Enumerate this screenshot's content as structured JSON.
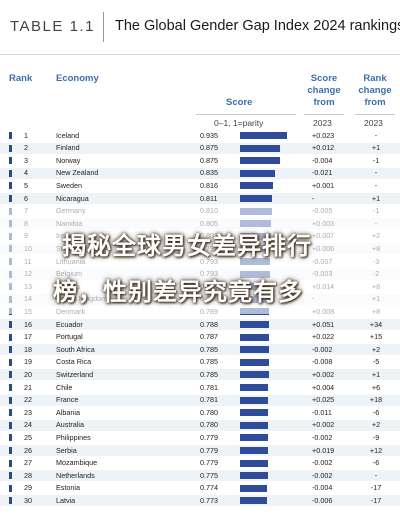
{
  "header": {
    "table_label": "TABLE 1.1",
    "title": "The Global Gender Gap Index 2024 rankings"
  },
  "columns": {
    "rank": "Rank",
    "economy": "Economy",
    "score": "Score",
    "score_change": "Score\nchange\nfrom",
    "rank_change": "Rank\nchange\nfrom",
    "parity": "0–1, 1=parity",
    "year1": "2023",
    "year2": "2023"
  },
  "rows": [
    {
      "rank": "1",
      "economy": "Iceland",
      "score": "0.935",
      "score_value": 0.935,
      "chg": "+0.023",
      "rchg": "-"
    },
    {
      "rank": "2",
      "economy": "Finland",
      "score": "0.875",
      "score_value": 0.875,
      "chg": "+0.012",
      "rchg": "+1"
    },
    {
      "rank": "3",
      "economy": "Norway",
      "score": "0.875",
      "score_value": 0.875,
      "chg": "-0.004",
      "rchg": "-1"
    },
    {
      "rank": "4",
      "economy": "New Zealand",
      "score": "0.835",
      "score_value": 0.835,
      "chg": "-0.021",
      "rchg": "-"
    },
    {
      "rank": "5",
      "economy": "Sweden",
      "score": "0.816",
      "score_value": 0.816,
      "chg": "+0.001",
      "rchg": "-"
    },
    {
      "rank": "6",
      "economy": "Nicaragua",
      "score": "0.811",
      "score_value": 0.811,
      "chg": "-",
      "rchg": "+1"
    },
    {
      "rank": "7",
      "economy": "Germany",
      "score": "0.810",
      "score_value": 0.81,
      "chg": "-0.005",
      "rchg": "-1"
    },
    {
      "rank": "8",
      "economy": "Namibia",
      "score": "0.805",
      "score_value": 0.805,
      "chg": "+0.003",
      "rchg": "-"
    },
    {
      "rank": "9",
      "economy": "Ireland",
      "score": "0.802",
      "score_value": 0.802,
      "chg": "+0.007",
      "rchg": "+2"
    },
    {
      "rank": "10",
      "economy": "Spain",
      "score": "0.797",
      "score_value": 0.797,
      "chg": "+0.006",
      "rchg": "+8"
    },
    {
      "rank": "11",
      "economy": "Lithuania",
      "score": "0.793",
      "score_value": 0.793,
      "chg": "-0.007",
      "rchg": "-3"
    },
    {
      "rank": "12",
      "economy": "Belgium",
      "score": "0.793",
      "score_value": 0.793,
      "chg": "-0.003",
      "rchg": "-2"
    },
    {
      "rank": "13",
      "economy": "Estonia",
      "score": "0.791",
      "score_value": 0.791,
      "chg": "+0.014",
      "rchg": "+8"
    },
    {
      "rank": "14",
      "economy": "United Kingdom",
      "score": "0.789",
      "score_value": 0.789,
      "chg": "-",
      "rchg": "+1"
    },
    {
      "rank": "15",
      "economy": "Denmark",
      "score": "0.789",
      "score_value": 0.789,
      "chg": "+0.008",
      "rchg": "+8"
    },
    {
      "rank": "16",
      "economy": "Ecuador",
      "score": "0.788",
      "score_value": 0.788,
      "chg": "+0.051",
      "rchg": "+34"
    },
    {
      "rank": "17",
      "economy": "Portugal",
      "score": "0.787",
      "score_value": 0.787,
      "chg": "+0.022",
      "rchg": "+15"
    },
    {
      "rank": "18",
      "economy": "South Africa",
      "score": "0.785",
      "score_value": 0.785,
      "chg": "-0.002",
      "rchg": "+2"
    },
    {
      "rank": "19",
      "economy": "Costa Rica",
      "score": "0.785",
      "score_value": 0.785,
      "chg": "-0.008",
      "rchg": "-5"
    },
    {
      "rank": "20",
      "economy": "Switzerland",
      "score": "0.785",
      "score_value": 0.785,
      "chg": "+0.002",
      "rchg": "+1"
    },
    {
      "rank": "21",
      "economy": "Chile",
      "score": "0.781",
      "score_value": 0.781,
      "chg": "+0.004",
      "rchg": "+6"
    },
    {
      "rank": "22",
      "economy": "France",
      "score": "0.781",
      "score_value": 0.781,
      "chg": "+0.025",
      "rchg": "+18"
    },
    {
      "rank": "23",
      "economy": "Albania",
      "score": "0.780",
      "score_value": 0.78,
      "chg": "-0.011",
      "rchg": "-6"
    },
    {
      "rank": "24",
      "economy": "Australia",
      "score": "0.780",
      "score_value": 0.78,
      "chg": "+0.002",
      "rchg": "+2"
    },
    {
      "rank": "25",
      "economy": "Philippines",
      "score": "0.779",
      "score_value": 0.779,
      "chg": "-0.002",
      "rchg": "-9"
    },
    {
      "rank": "26",
      "economy": "Serbia",
      "score": "0.779",
      "score_value": 0.779,
      "chg": "+0.019",
      "rchg": "+12"
    },
    {
      "rank": "27",
      "economy": "Mozambique",
      "score": "0.779",
      "score_value": 0.779,
      "chg": "-0.002",
      "rchg": "-6"
    },
    {
      "rank": "28",
      "economy": "Netherlands",
      "score": "0.775",
      "score_value": 0.775,
      "chg": "-0.002",
      "rchg": "-"
    },
    {
      "rank": "29",
      "economy": "Estonia",
      "score": "0.774",
      "score_value": 0.774,
      "chg": "-0.004",
      "rchg": "-17"
    },
    {
      "rank": "30",
      "economy": "Latvia",
      "score": "0.773",
      "score_value": 0.773,
      "chg": "-0.006",
      "rchg": "-17"
    }
  ],
  "overlay": {
    "line1": "揭秘全球男女差异排行",
    "line2": "榜，性别差异究竟有多"
  },
  "colors": {
    "accent": "#3c6fa8",
    "bar": "#2f4c9a",
    "row_alt": "#eef3f8"
  }
}
